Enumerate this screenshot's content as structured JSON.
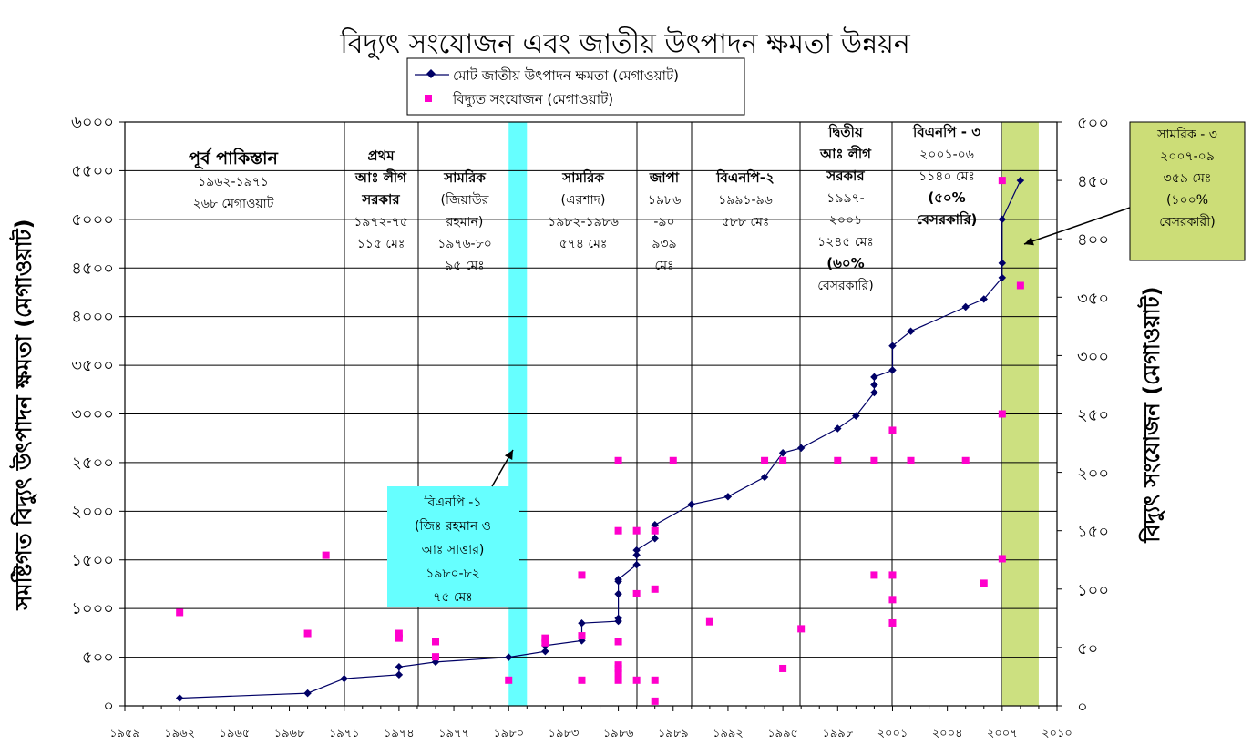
{
  "chart_data": {
    "type": "line",
    "title": "বিদ্যুৎ সংযোজন এবং জাতীয় উৎপাদন ক্ষমতা উন্নয়ন",
    "ylabel_left": "সমষ্টিগত বিদ্যুৎ উৎপাদন ক্ষমতা (মেগাওয়াট)",
    "ylabel_right": "বিদ্যুৎ সংযোজন (মেগাওয়াট)",
    "x_range": [
      1959,
      2010
    ],
    "y_left_range": [
      0,
      6000
    ],
    "y_right_range": [
      0,
      500
    ],
    "grid": true,
    "x_tick_values": [
      1959,
      1962,
      1965,
      1968,
      1971,
      1974,
      1977,
      1980,
      1983,
      1986,
      1989,
      1992,
      1995,
      1998,
      2001,
      2004,
      2007,
      2010
    ],
    "x_tick_labels": [
      "১৯৫৯",
      "১৯৬২",
      "১৯৬৫",
      "১৯৬৮",
      "১৯৭১",
      "১৯৭৪",
      "১৯৭৭",
      "১৯৮০",
      "১৯৮৩",
      "১৯৮৬",
      "১৯৮৯",
      "১৯৯২",
      "১৯৯৫",
      "১৯৯৮",
      "২০০১",
      "২০০৪",
      "২০০৭",
      "২০১০"
    ],
    "y_left_tick_values": [
      0,
      500,
      1000,
      1500,
      2000,
      2500,
      3000,
      3500,
      4000,
      4500,
      5000,
      5500,
      6000
    ],
    "y_left_tick_labels": [
      "০",
      "৫০০",
      "১০০০",
      "১৫০০",
      "২০০০",
      "২৫০০",
      "৩০০০",
      "৩৫০০",
      "৪০০০",
      "৪৫০০",
      "৫০০০",
      "৫৫০০",
      "৬০০০"
    ],
    "y_right_tick_values": [
      0,
      50,
      100,
      150,
      200,
      250,
      300,
      350,
      400,
      450,
      500
    ],
    "y_right_tick_labels": [
      "০",
      "৫০",
      "১০০",
      "১৫০",
      "২০০",
      "২৫০",
      "৩০০",
      "৩৫০",
      "৪০০",
      "৪৫০",
      "৫০০"
    ],
    "legend": [
      {
        "name": "মোট জাতীয় উৎপাদন ক্ষমতা (মেগাওয়াট)",
        "color": "#000066",
        "marker": "diamond"
      },
      {
        "name": "বিদ্যুত সংযোজন (মেগাওয়াট)",
        "color": "#ff00cc",
        "marker": "square"
      }
    ],
    "series": [
      {
        "name": "মোট জাতীয় উৎপাদন ক্ষমতা (মেগাওয়াট)",
        "axis": "left",
        "color": "#000066",
        "points": [
          [
            1962,
            80
          ],
          [
            1969,
            130
          ],
          [
            1971,
            280
          ],
          [
            1974,
            320
          ],
          [
            1974,
            400
          ],
          [
            1976,
            450
          ],
          [
            1980,
            500
          ],
          [
            1982,
            560
          ],
          [
            1982,
            620
          ],
          [
            1984,
            670
          ],
          [
            1984,
            850
          ],
          [
            1986,
            870
          ],
          [
            1986,
            900
          ],
          [
            1986,
            1150
          ],
          [
            1986,
            1280
          ],
          [
            1986,
            1300
          ],
          [
            1987,
            1450
          ],
          [
            1987,
            1550
          ],
          [
            1987,
            1600
          ],
          [
            1988,
            1720
          ],
          [
            1988,
            1860
          ],
          [
            1990,
            2070
          ],
          [
            1992,
            2150
          ],
          [
            1994,
            2350
          ],
          [
            1995,
            2600
          ],
          [
            1996,
            2650
          ],
          [
            1998,
            2850
          ],
          [
            1999,
            2980
          ],
          [
            2000,
            3220
          ],
          [
            2000,
            3300
          ],
          [
            2000,
            3380
          ],
          [
            2001,
            3450
          ],
          [
            2001,
            3700
          ],
          [
            2002,
            3850
          ],
          [
            2005,
            4100
          ],
          [
            2006,
            4180
          ],
          [
            2007,
            4400
          ],
          [
            2007,
            4550
          ],
          [
            2007,
            5000
          ],
          [
            2008,
            5400
          ]
        ]
      },
      {
        "name": "বিদ্যুত সংযোজন (মেগাওয়াট)",
        "axis": "right",
        "color": "#ff00cc",
        "points": [
          [
            1962,
            80
          ],
          [
            1969,
            62
          ],
          [
            1970,
            129
          ],
          [
            1974,
            58
          ],
          [
            1974,
            62
          ],
          [
            1976,
            55
          ],
          [
            1976,
            42
          ],
          [
            1980,
            22
          ],
          [
            1982,
            54
          ],
          [
            1982,
            58
          ],
          [
            1984,
            60
          ],
          [
            1984,
            112
          ],
          [
            1984,
            22
          ],
          [
            1986,
            22
          ],
          [
            1986,
            28
          ],
          [
            1986,
            32
          ],
          [
            1986,
            35
          ],
          [
            1986,
            210
          ],
          [
            1986,
            150
          ],
          [
            1986,
            55
          ],
          [
            1987,
            150
          ],
          [
            1987,
            22
          ],
          [
            1987,
            96
          ],
          [
            1988,
            22
          ],
          [
            1988,
            4
          ],
          [
            1988,
            100
          ],
          [
            1988,
            150
          ],
          [
            1989,
            210
          ],
          [
            1991,
            72
          ],
          [
            1994,
            210
          ],
          [
            1995,
            32
          ],
          [
            1995,
            210
          ],
          [
            1996,
            66
          ],
          [
            1998,
            210
          ],
          [
            2000,
            112
          ],
          [
            2000,
            210
          ],
          [
            2001,
            112
          ],
          [
            2001,
            91
          ],
          [
            2001,
            236
          ],
          [
            2001,
            71
          ],
          [
            2002,
            210
          ],
          [
            2005,
            210
          ],
          [
            2006,
            105
          ],
          [
            2007,
            250
          ],
          [
            2007,
            126
          ],
          [
            2007,
            450
          ],
          [
            2008,
            360
          ]
        ]
      }
    ],
    "eras": [
      {
        "lines": [
          "পূর্ব পাকিস্তান",
          "১৯৬২-১৯৭১",
          "২৬৮ মেগাওয়াট"
        ]
      },
      {
        "lines": [
          "প্রথম",
          "আঃ লীগ",
          "সরকার",
          "১৯৭২-৭৫",
          "১১৫ মেঃ"
        ]
      },
      {
        "lines": [
          "সামরিক",
          "(জিয়াউর",
          "রহমান)",
          "১৯৭৬-৮০",
          "৯৫ মেঃ"
        ]
      },
      {
        "lines": [
          "সামরিক",
          "(এরশাদ)",
          "১৯৮২-১৯৮৬",
          "৫৭৪ মেঃ"
        ]
      },
      {
        "lines": [
          "জাপা",
          "১৯৮৬",
          "-৯০",
          "৯৩৯",
          "মেঃ"
        ]
      },
      {
        "lines": [
          "বিএনপি-২",
          "১৯৯১-৯৬",
          "৫৮৮ মেঃ"
        ]
      },
      {
        "lines": [
          "দ্বিতীয়",
          "আঃ লীগ",
          "সরকার",
          "১৯৯৭-",
          "২০০১",
          "১২৪৫ মেঃ",
          "(৬০%",
          "বেসরকারি)"
        ]
      },
      {
        "lines": [
          "বিএনপি - ৩",
          "২০০১-০৬",
          "১১৪০ মেঃ",
          "(৫০%",
          "বেসরকারি)"
        ]
      }
    ],
    "callouts": [
      {
        "lines": [
          "বিএনপি -১",
          "(জিঃ রহমান ও",
          "আঃ সাত্তার)",
          "১৯৮০-৮২",
          "৭৫ মেঃ"
        ],
        "color": "#66ffff"
      },
      {
        "lines": [
          "সামরিক - ৩",
          "২০০৭-০৯",
          "৩৫৯ মেঃ",
          "(১০০%",
          "বেসরকারী)"
        ],
        "color": "#ccdd77"
      }
    ],
    "bands": [
      {
        "from": 1980,
        "to": 1981,
        "color": "#66ffff"
      },
      {
        "from": 2007,
        "to": 2009,
        "color": "#cce080"
      }
    ]
  }
}
